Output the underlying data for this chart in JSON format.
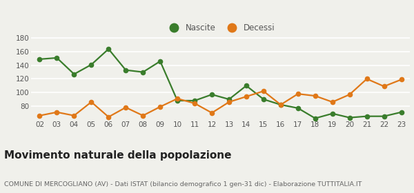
{
  "years": [
    "02",
    "03",
    "04",
    "05",
    "06",
    "07",
    "08",
    "09",
    "10",
    "11",
    "12",
    "13",
    "14",
    "15",
    "16",
    "17",
    "18",
    "19",
    "20",
    "21",
    "22",
    "23"
  ],
  "nascite": [
    149,
    151,
    127,
    141,
    164,
    133,
    130,
    146,
    88,
    88,
    97,
    90,
    110,
    90,
    82,
    77,
    62,
    69,
    63,
    65,
    65,
    71
  ],
  "decessi": [
    66,
    71,
    66,
    86,
    64,
    78,
    66,
    79,
    91,
    84,
    70,
    86,
    94,
    102,
    82,
    98,
    95,
    86,
    97,
    120,
    109,
    119
  ],
  "nascite_color": "#3a7d2c",
  "decessi_color": "#e07818",
  "bg_color": "#f0f0eb",
  "title": "Movimento naturale della popolazione",
  "subtitle": "COMUNE DI MERCOGLIANO (AV) - Dati ISTAT (bilancio demografico 1 gen-31 dic) - Elaborazione TUTTITALIA.IT",
  "legend_nascite": "Nascite",
  "legend_decessi": "Decessi",
  "ylim": [
    60,
    185
  ],
  "yticks": [
    80,
    100,
    120,
    140,
    160,
    180
  ],
  "marker_size": 4.5,
  "linewidth": 1.6,
  "title_fontsize": 11,
  "subtitle_fontsize": 6.8,
  "tick_fontsize": 7.5
}
